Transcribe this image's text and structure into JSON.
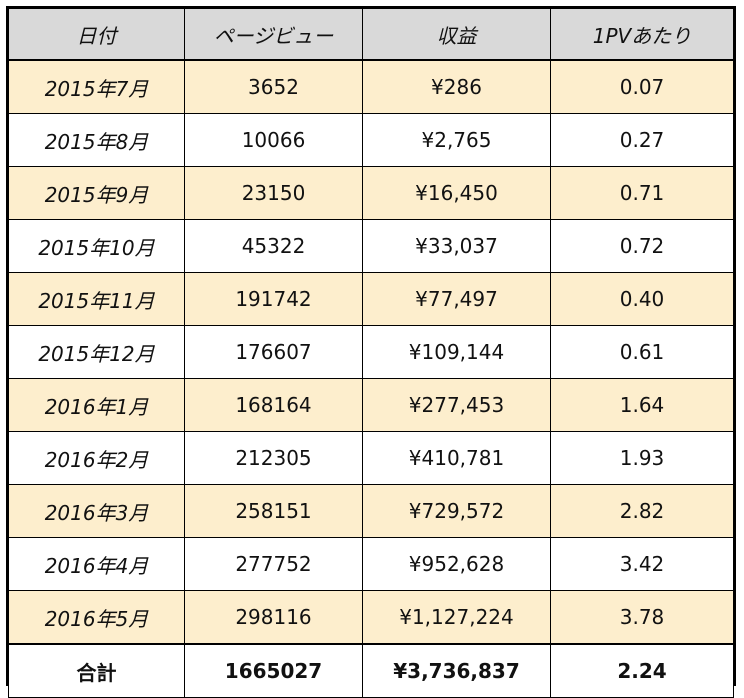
{
  "chart_data": {
    "type": "table",
    "columns": [
      "日付",
      "ページビュー",
      "収益",
      "1PVあたり"
    ],
    "rows": [
      {
        "date": "2015年7月",
        "pageviews": "3652",
        "revenue": "¥286",
        "per_pv": "0.07"
      },
      {
        "date": "2015年8月",
        "pageviews": "10066",
        "revenue": "¥2,765",
        "per_pv": "0.27"
      },
      {
        "date": "2015年9月",
        "pageviews": "23150",
        "revenue": "¥16,450",
        "per_pv": "0.71"
      },
      {
        "date": "2015年10月",
        "pageviews": "45322",
        "revenue": "¥33,037",
        "per_pv": "0.72"
      },
      {
        "date": "2015年11月",
        "pageviews": "191742",
        "revenue": "¥77,497",
        "per_pv": "0.40"
      },
      {
        "date": "2015年12月",
        "pageviews": "176607",
        "revenue": "¥109,144",
        "per_pv": "0.61"
      },
      {
        "date": "2016年1月",
        "pageviews": "168164",
        "revenue": "¥277,453",
        "per_pv": "1.64"
      },
      {
        "date": "2016年2月",
        "pageviews": "212305",
        "revenue": "¥410,781",
        "per_pv": "1.93"
      },
      {
        "date": "2016年3月",
        "pageviews": "258151",
        "revenue": "¥729,572",
        "per_pv": "2.82"
      },
      {
        "date": "2016年4月",
        "pageviews": "277752",
        "revenue": "¥952,628",
        "per_pv": "3.42"
      },
      {
        "date": "2016年5月",
        "pageviews": "298116",
        "revenue": "¥1,127,224",
        "per_pv": "3.78"
      }
    ],
    "total": {
      "label": "合計",
      "pageviews": "1665027",
      "revenue": "¥3,736,837",
      "per_pv": "2.24"
    }
  },
  "colors": {
    "header_bg": "#d9d9d9",
    "shaded_row_bg": "#fdeecd",
    "plain_row_bg": "#ffffff",
    "border": "#000000"
  }
}
